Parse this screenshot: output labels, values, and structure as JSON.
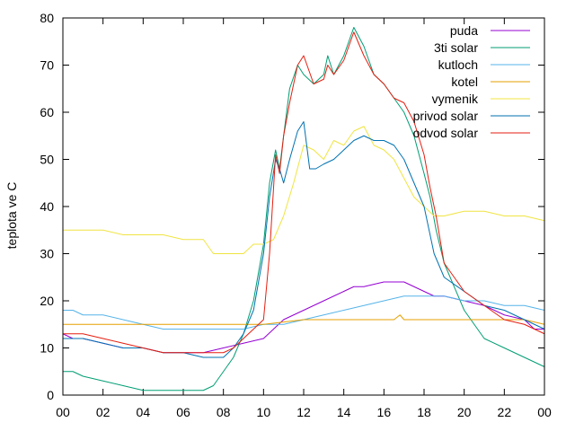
{
  "chart_data": {
    "type": "line",
    "title": "",
    "xlabel": "",
    "ylabel": "teplota ve C",
    "xlim": [
      0,
      24
    ],
    "ylim": [
      0,
      80
    ],
    "xticks": [
      "00",
      "02",
      "04",
      "06",
      "08",
      "10",
      "12",
      "14",
      "16",
      "18",
      "20",
      "22",
      "00"
    ],
    "yticks": [
      "0",
      "10",
      "20",
      "30",
      "40",
      "50",
      "60",
      "70",
      "80"
    ],
    "grid": false,
    "legend": "top-right",
    "series": [
      {
        "name": "puda",
        "color": "#9400d3",
        "x": [
          0,
          0.5,
          1,
          2,
          3,
          4,
          5,
          6,
          7,
          8,
          9,
          10,
          10.5,
          11,
          12,
          13,
          14,
          14.5,
          15,
          16,
          17,
          17.5,
          18,
          18.5,
          19,
          20,
          21,
          22,
          23,
          23.5,
          24
        ],
        "y": [
          13,
          12,
          12,
          11,
          10,
          10,
          9,
          9,
          9,
          10,
          11,
          12,
          14,
          16,
          18,
          20,
          22,
          23,
          23,
          24,
          24,
          23,
          22,
          21,
          21,
          20,
          19,
          17,
          16,
          14,
          14
        ]
      },
      {
        "name": "3ti solar",
        "color": "#009e73",
        "x": [
          0,
          0.5,
          1,
          2,
          3,
          4,
          5,
          6,
          7,
          7.5,
          8,
          8.5,
          9,
          9.5,
          10,
          10.3,
          10.6,
          10.8,
          11,
          11.3,
          11.7,
          12,
          12.5,
          13,
          13.2,
          13.5,
          14,
          14.5,
          15,
          15.5,
          16,
          16.5,
          17,
          17.5,
          18,
          18.3,
          18.6,
          19,
          20,
          21,
          22,
          23,
          24
        ],
        "y": [
          5,
          5,
          4,
          3,
          2,
          1,
          1,
          1,
          1,
          2,
          5,
          8,
          13,
          20,
          32,
          45,
          52,
          48,
          55,
          65,
          70,
          68,
          66,
          68,
          72,
          68,
          72,
          78,
          74,
          68,
          66,
          63,
          60,
          55,
          47,
          42,
          35,
          28,
          18,
          12,
          10,
          8,
          6
        ]
      },
      {
        "name": "kutloch",
        "color": "#56b4e9",
        "x": [
          0,
          0.5,
          1,
          2,
          3,
          4,
          5,
          6,
          7,
          8,
          9,
          10,
          11,
          12,
          13,
          14,
          15,
          16,
          17,
          18,
          19,
          20,
          21,
          22,
          23,
          24
        ],
        "y": [
          18,
          18,
          17,
          17,
          16,
          15,
          14,
          14,
          14,
          14,
          14,
          15,
          15,
          16,
          17,
          18,
          19,
          20,
          21,
          21,
          21,
          20,
          20,
          19,
          19,
          18
        ]
      },
      {
        "name": "kotel",
        "color": "#e69f00",
        "x": [
          0,
          1,
          2,
          4,
          6,
          8,
          10,
          12,
          14,
          16,
          16.5,
          16.8,
          17,
          18,
          20,
          22,
          23,
          24
        ],
        "y": [
          15,
          15,
          15,
          15,
          15,
          15,
          15,
          16,
          16,
          16,
          16,
          17,
          16,
          16,
          16,
          16,
          16,
          15
        ]
      },
      {
        "name": "vymenik",
        "color": "#f0e442",
        "x": [
          0,
          1,
          2,
          3,
          4,
          5,
          6,
          7,
          7.5,
          8,
          9,
          9.5,
          10,
          10.5,
          11,
          11.5,
          12,
          12.5,
          13,
          13.5,
          14,
          14.5,
          15,
          15.5,
          16,
          16.5,
          17,
          17.5,
          18,
          18.5,
          19,
          20,
          21,
          22,
          23,
          24
        ],
        "y": [
          35,
          35,
          35,
          34,
          34,
          34,
          33,
          33,
          30,
          30,
          30,
          32,
          32,
          33,
          38,
          45,
          53,
          52,
          50,
          54,
          53,
          56,
          57,
          53,
          52,
          50,
          46,
          42,
          40,
          38,
          38,
          39,
          39,
          38,
          38,
          37
        ]
      },
      {
        "name": "privod solar",
        "color": "#0072b2",
        "x": [
          0,
          0.5,
          1,
          2,
          3,
          4,
          5,
          6,
          7,
          8,
          8.5,
          9,
          9.5,
          10,
          10.3,
          10.6,
          10.8,
          11,
          11.3,
          11.7,
          12,
          12.3,
          12.6,
          13,
          13.5,
          14,
          14.5,
          15,
          15.5,
          16,
          16.5,
          17,
          17.5,
          18,
          18.5,
          19,
          20,
          21,
          22,
          23,
          24
        ],
        "y": [
          12,
          12,
          12,
          11,
          10,
          10,
          9,
          9,
          8,
          8,
          10,
          13,
          18,
          30,
          42,
          50,
          48,
          45,
          50,
          56,
          58,
          48,
          48,
          49,
          50,
          52,
          54,
          55,
          54,
          54,
          53,
          50,
          45,
          40,
          30,
          25,
          22,
          19,
          18,
          16,
          14
        ]
      },
      {
        "name": "odvod solar",
        "color": "#e51e10",
        "x": [
          0,
          0.5,
          1,
          2,
          3,
          4,
          5,
          6,
          7,
          8,
          8.5,
          9,
          9.5,
          10,
          10.3,
          10.6,
          10.8,
          11,
          11.3,
          11.7,
          12,
          12.5,
          13,
          13.2,
          13.5,
          14,
          14.5,
          15,
          15.5,
          16,
          16.5,
          17,
          17.5,
          18,
          18.3,
          18.6,
          19,
          20,
          21,
          22,
          23,
          24
        ],
        "y": [
          13,
          13,
          13,
          12,
          11,
          10,
          9,
          9,
          9,
          9,
          10,
          12,
          14,
          16,
          30,
          51,
          47,
          55,
          62,
          70,
          72,
          66,
          67,
          70,
          68,
          71,
          77,
          72,
          68,
          66,
          63,
          62,
          58,
          51,
          44,
          38,
          28,
          22,
          19,
          16,
          15,
          13
        ]
      }
    ]
  }
}
